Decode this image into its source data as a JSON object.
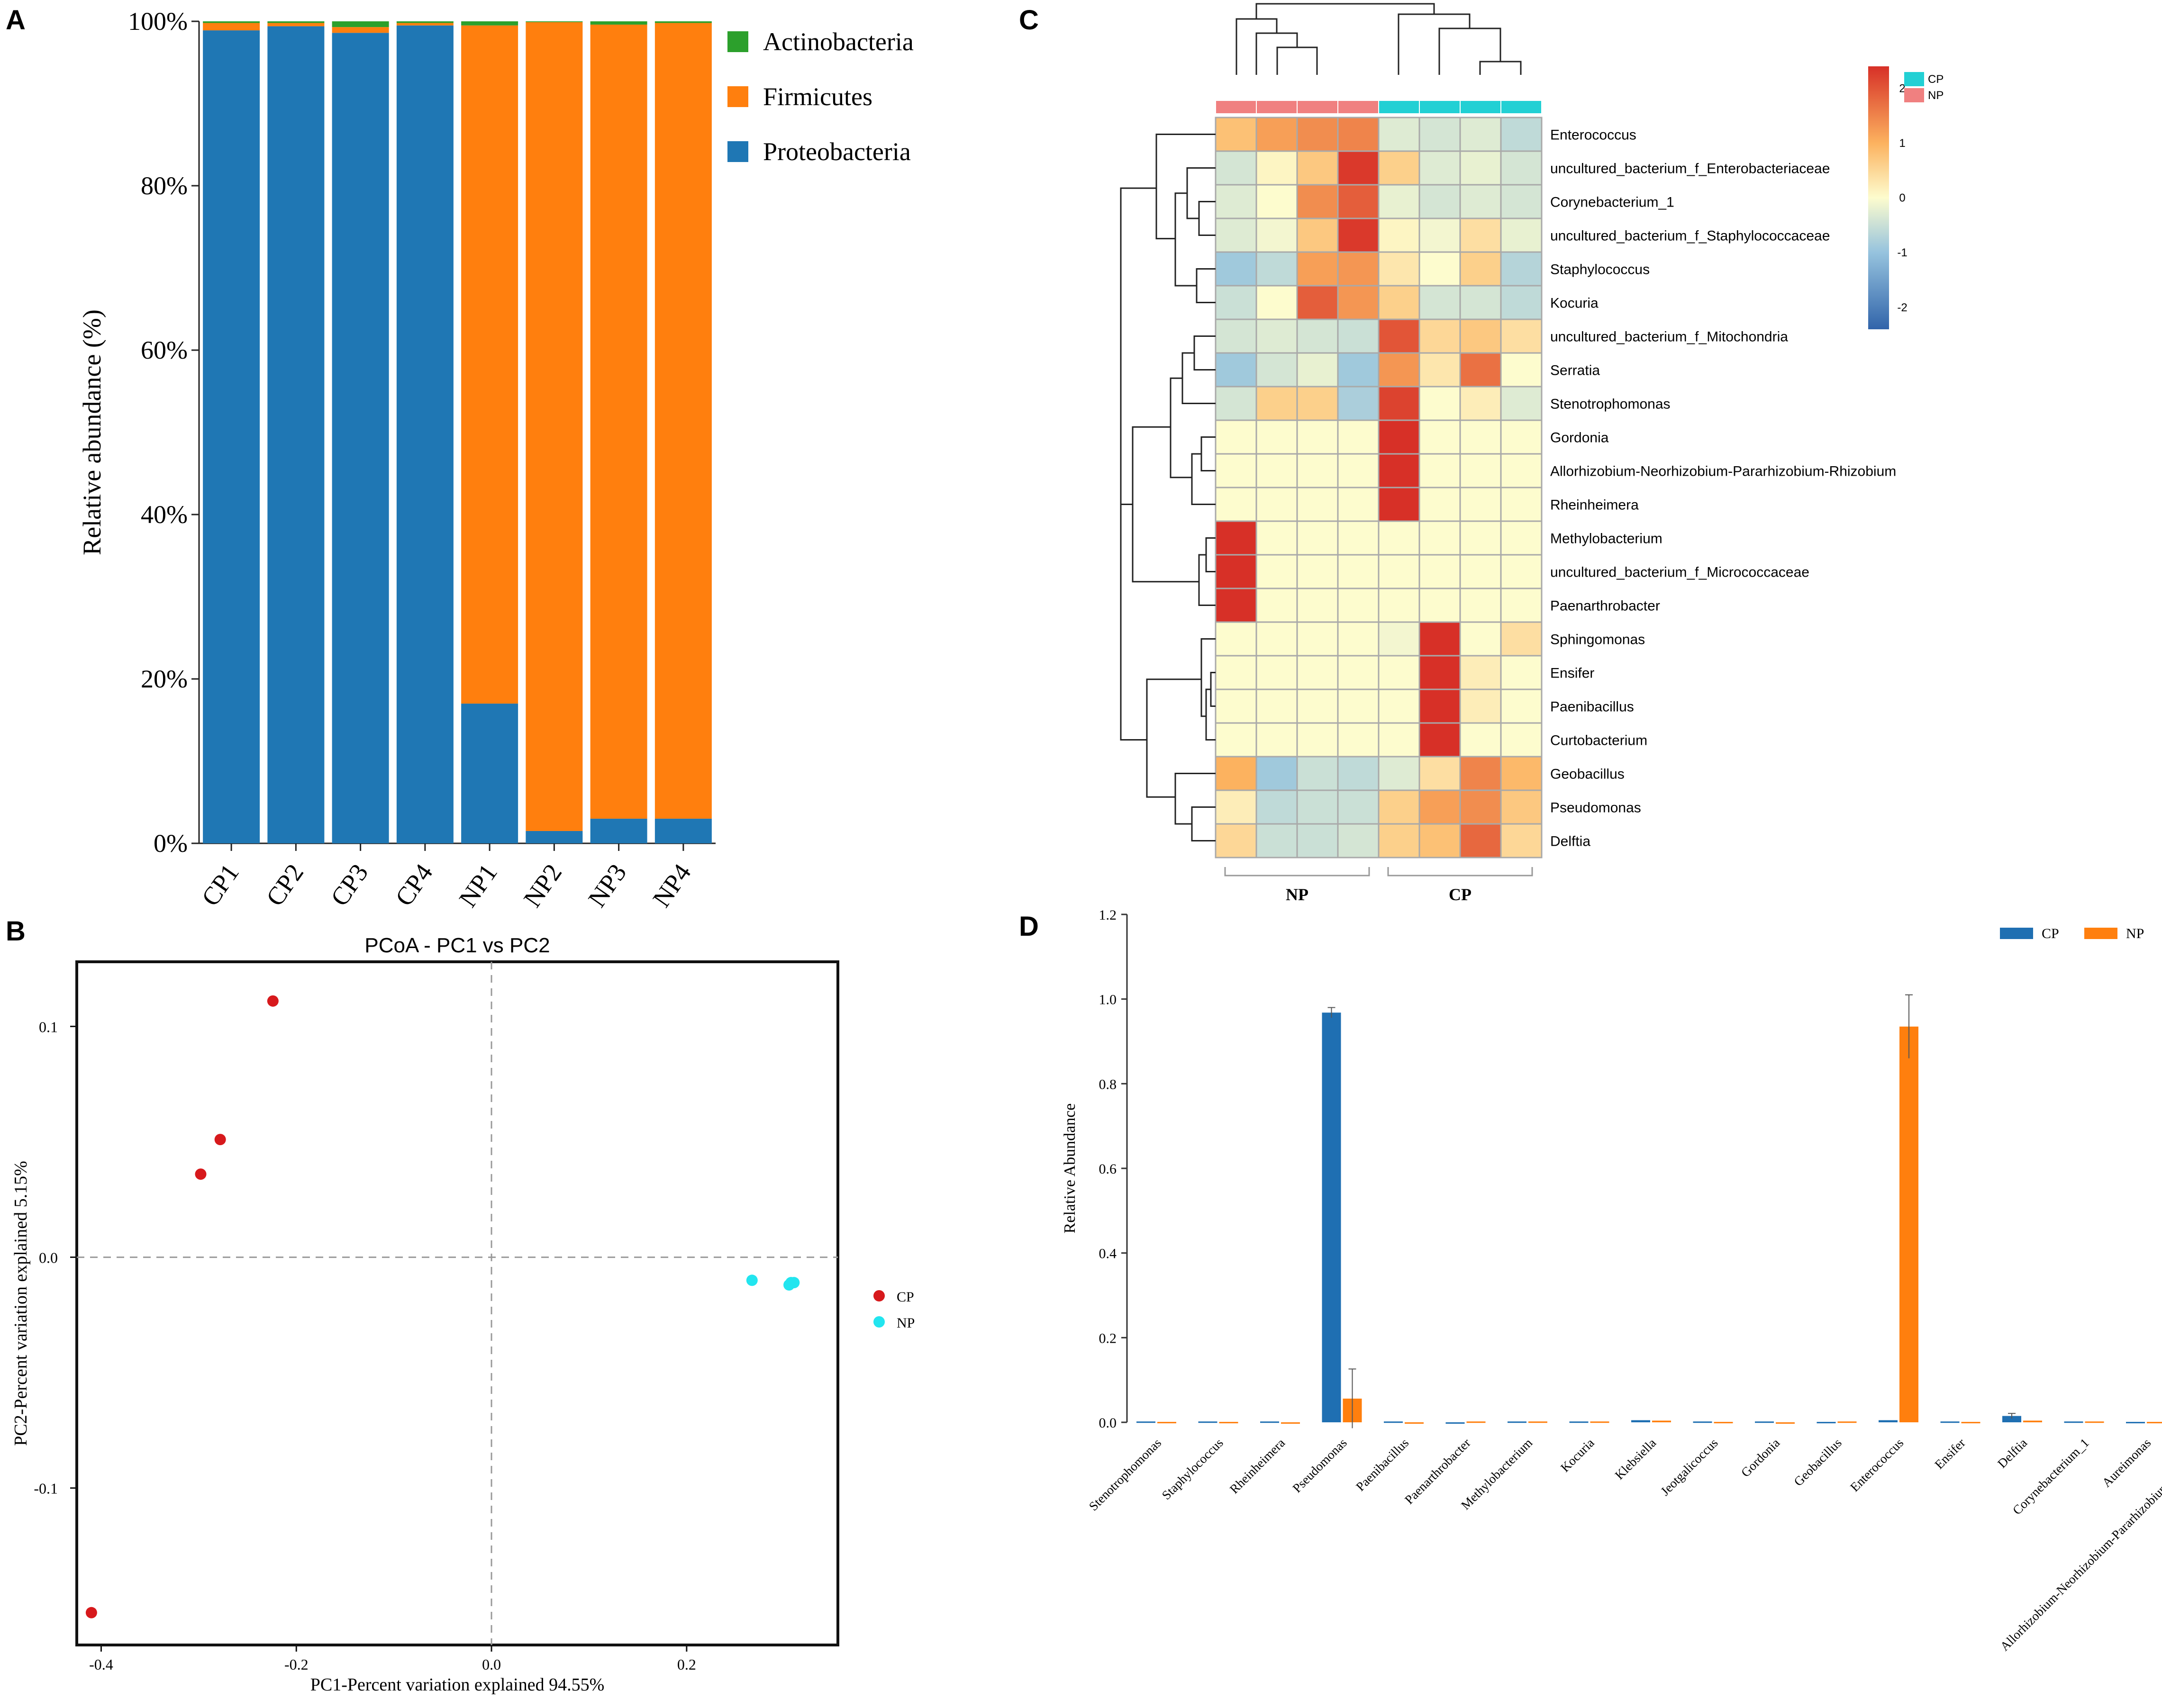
{
  "colors": {
    "proteo": "#1f77b4",
    "firmi": "#ff7f0e",
    "actino": "#2ca02c",
    "cp_point": "#d7191c",
    "np_point": "#22e5ef",
    "cp_bar": "#1f6fb2",
    "np_bar": "#ff7f0e",
    "hm_cp": "#22d0d4",
    "hm_np": "#f08080"
  },
  "chart_data": [
    {
      "panel": "A",
      "type": "bar",
      "stacked": true,
      "categories": [
        "CP1",
        "CP2",
        "CP3",
        "CP4",
        "NP1",
        "NP2",
        "NP3",
        "NP4"
      ],
      "series": [
        {
          "name": "Proteobacteria",
          "values": [
            98.9,
            99.4,
            98.6,
            99.5,
            17.0,
            1.5,
            3.0,
            3.0
          ]
        },
        {
          "name": "Firmicutes",
          "values": [
            0.9,
            0.4,
            0.7,
            0.3,
            82.5,
            98.4,
            96.6,
            96.8
          ]
        },
        {
          "name": "Actinobacteria",
          "values": [
            0.2,
            0.2,
            0.7,
            0.2,
            0.5,
            0.1,
            0.4,
            0.2
          ]
        }
      ],
      "legend_order": [
        "Actinobacteria",
        "Firmicutes",
        "Proteobacteria"
      ],
      "ylabel": "Relative abundance (%)",
      "xlabel": "",
      "ylim": [
        0,
        100
      ],
      "yticks": [
        "0%",
        "20%",
        "40%",
        "60%",
        "80%",
        "100%"
      ]
    },
    {
      "panel": "B",
      "type": "scatter",
      "title": "PCoA - PC1 vs PC2",
      "xlabel": "PC1-Percent variation explained 94.55%",
      "ylabel": "PC2-Percent variation explained 5.15%",
      "xlim": [
        -0.425,
        0.355
      ],
      "ylim": [
        -0.168,
        0.128
      ],
      "xticks": [
        -0.4,
        -0.2,
        0.0,
        0.2
      ],
      "xtick_labels": [
        "-0.4",
        "-0.2",
        "0.0",
        "0.2"
      ],
      "yticks": [
        -0.1,
        0.0,
        0.1
      ],
      "ytick_labels": [
        "-0.1",
        "0.0",
        "0.1"
      ],
      "series": [
        {
          "name": "CP",
          "points": [
            [
              -0.224,
              0.111
            ],
            [
              -0.278,
              0.051
            ],
            [
              -0.298,
              0.036
            ],
            [
              -0.41,
              -0.154
            ]
          ]
        },
        {
          "name": "NP",
          "points": [
            [
              0.267,
              -0.01
            ],
            [
              0.305,
              -0.012
            ],
            [
              0.307,
              -0.011
            ],
            [
              0.31,
              -0.011
            ]
          ]
        }
      ]
    },
    {
      "panel": "C",
      "type": "heatmap",
      "columns": [
        "NP",
        "NP",
        "NP",
        "NP",
        "CP",
        "CP",
        "CP",
        "CP"
      ],
      "group_labels": [
        "NP",
        "CP"
      ],
      "legend_groups": [
        "CP",
        "NP"
      ],
      "rows": [
        "Enterococcus",
        "uncultured_bacterium_f_Enterobacteriaceae",
        "Corynebacterium_1",
        "uncultured_bacterium_f_Staphylococcaceae",
        "Staphylococcus",
        "Kocuria",
        "uncultured_bacterium_f_Mitochondria",
        "Serratia",
        "Stenotrophomonas",
        "Gordonia",
        "Allorhizobium-Neorhizobium-Pararhizobium-Rhizobium",
        "Rheinheimera",
        "Methylobacterium",
        "uncultured_bacterium_f_Micrococcaceae",
        "Paenarthrobacter",
        "Sphingomonas",
        "Ensifer",
        "Paenibacillus",
        "Curtobacterium",
        "Geobacillus",
        "Pseudomonas",
        "Delftia"
      ],
      "values": [
        [
          0.8,
          1.2,
          1.4,
          1.5,
          -0.3,
          -0.4,
          -0.3,
          -0.6
        ],
        [
          -0.4,
          0.1,
          0.7,
          2.3,
          0.6,
          -0.3,
          -0.2,
          -0.4
        ],
        [
          -0.3,
          0.0,
          1.4,
          1.9,
          -0.2,
          -0.4,
          -0.3,
          -0.4
        ],
        [
          -0.3,
          -0.1,
          0.7,
          2.3,
          0.1,
          -0.1,
          0.4,
          -0.2
        ],
        [
          -0.9,
          -0.6,
          1.2,
          1.3,
          0.3,
          0.0,
          0.6,
          -0.7
        ],
        [
          -0.5,
          0.0,
          1.9,
          1.3,
          0.6,
          -0.4,
          -0.4,
          -0.6
        ],
        [
          -0.4,
          -0.3,
          -0.4,
          -0.5,
          2.0,
          0.5,
          0.7,
          0.4
        ],
        [
          -0.9,
          -0.4,
          -0.2,
          -0.9,
          1.3,
          0.3,
          1.7,
          0.0
        ],
        [
          -0.4,
          0.6,
          0.6,
          -0.8,
          2.2,
          0.0,
          0.2,
          -0.3
        ],
        [
          0.0,
          0.0,
          0.0,
          0.0,
          2.4,
          0.0,
          0.0,
          0.0
        ],
        [
          0.0,
          0.0,
          0.0,
          0.0,
          2.4,
          0.0,
          0.0,
          0.0
        ],
        [
          0.0,
          0.0,
          0.0,
          0.0,
          2.4,
          0.0,
          0.0,
          0.0
        ],
        [
          2.4,
          0.0,
          0.0,
          0.0,
          0.0,
          0.0,
          0.0,
          0.0
        ],
        [
          2.4,
          0.0,
          0.0,
          0.0,
          0.0,
          0.0,
          0.0,
          0.0
        ],
        [
          2.4,
          0.0,
          0.0,
          0.0,
          0.0,
          0.0,
          0.0,
          0.0
        ],
        [
          0.0,
          0.0,
          0.0,
          0.0,
          -0.1,
          2.4,
          0.0,
          0.4
        ],
        [
          0.0,
          0.0,
          0.0,
          0.0,
          0.0,
          2.4,
          0.2,
          0.0
        ],
        [
          0.0,
          0.0,
          0.0,
          0.0,
          0.0,
          2.4,
          0.2,
          0.0
        ],
        [
          0.0,
          0.0,
          0.0,
          0.0,
          0.0,
          2.4,
          0.0,
          0.0
        ],
        [
          1.0,
          -0.9,
          -0.5,
          -0.6,
          -0.3,
          0.4,
          1.5,
          0.9
        ],
        [
          0.2,
          -0.6,
          -0.5,
          -0.5,
          0.6,
          1.2,
          1.4,
          0.7
        ],
        [
          0.5,
          -0.5,
          -0.5,
          -0.4,
          0.6,
          0.8,
          1.8,
          0.5
        ]
      ],
      "colorbar_ticks": [
        2,
        1,
        0,
        -1,
        -2
      ],
      "color_range": [
        -2.4,
        2.4
      ]
    },
    {
      "panel": "D",
      "type": "bar",
      "ylabel": "Relative Abundance",
      "xlabel": "",
      "ylim": [
        0,
        1.2
      ],
      "yticks": [
        "0.0",
        "0.2",
        "0.4",
        "0.6",
        "0.8",
        "1.0",
        "1.2"
      ],
      "categories": [
        "Stenotrophomonas",
        "Staphylococcus",
        "Rheinheimera",
        "Pseudomonas",
        "Paenibacillus",
        "Paenarthrobacter",
        "Methylobacterium",
        "Kocuria",
        "Klebsiella",
        "Jeotgalicoccus",
        "Gordonia",
        "Geobacillus",
        "Enterococcus",
        "Ensifer",
        "Delftia",
        "Corynebacterium_1",
        "Aureimonas",
        "Allorhizobium-Neorhizobium-Pararhizobium-Rhizobium"
      ],
      "series": [
        {
          "name": "CP",
          "values": [
            0.002,
            0.002,
            0.002,
            0.968,
            0.002,
            0.0,
            0.002,
            0.002,
            0.005,
            0.002,
            0.002,
            0.001,
            0.005,
            0.002,
            0.015,
            0.002,
            0.001,
            0.003
          ],
          "errors": [
            0.001,
            0.001,
            0.001,
            0.012,
            0.001,
            0.0,
            0.001,
            0.001,
            0.002,
            0.001,
            0.001,
            0.001,
            0.002,
            0.001,
            0.006,
            0.001,
            0.001,
            0.001
          ]
        },
        {
          "name": "NP",
          "values": [
            0.001,
            0.001,
            0.0,
            0.056,
            0.0,
            0.002,
            0.002,
            0.002,
            0.004,
            0.001,
            0.0,
            0.002,
            0.935,
            0.001,
            0.004,
            0.002,
            0.001,
            0.001
          ],
          "errors": [
            0.0,
            0.0,
            0.0,
            0.07,
            0.0,
            0.001,
            0.001,
            0.001,
            0.002,
            0.0,
            0.0,
            0.001,
            0.075,
            0.0,
            0.002,
            0.001,
            0.0,
            0.0
          ]
        }
      ]
    }
  ]
}
